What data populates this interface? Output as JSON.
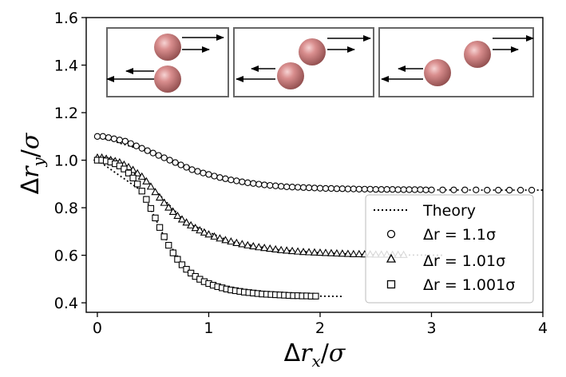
{
  "chart_data": {
    "type": "scatter",
    "xlabel": {
      "delta": "Δ",
      "var": "r",
      "sub": "x",
      "slash": "/",
      "sigma": "σ"
    },
    "ylabel": {
      "delta": "Δ",
      "var": "r",
      "sub": "y",
      "slash": "/",
      "sigma": "σ"
    },
    "xlim": [
      -0.1,
      4.0
    ],
    "ylim": [
      0.36,
      1.6
    ],
    "xticks": [
      "0",
      "1",
      "2",
      "3",
      "4"
    ],
    "yticks": [
      "0.4",
      "0.6",
      "0.8",
      "1.0",
      "1.2",
      "1.4",
      "1.6"
    ],
    "legend_position": "lower-right",
    "legend": [
      {
        "marker": "dotted-line",
        "label": "Theory"
      },
      {
        "marker": "circle",
        "label": "Δr = 1.1σ"
      },
      {
        "marker": "triangle",
        "label": "Δr = 1.01σ"
      },
      {
        "marker": "square",
        "label": "Δr = 1.001σ"
      }
    ],
    "series": [
      {
        "marker": "circle",
        "x": [
          0.0,
          0.05,
          0.1,
          0.15,
          0.2,
          0.25,
          0.3,
          0.35,
          0.4,
          0.45,
          0.5,
          0.55,
          0.6,
          0.65,
          0.7,
          0.75,
          0.8,
          0.85,
          0.9,
          0.95,
          1.0,
          1.05,
          1.1,
          1.15,
          1.2,
          1.25,
          1.3,
          1.35,
          1.4,
          1.45,
          1.5,
          1.55,
          1.6,
          1.65,
          1.7,
          1.75,
          1.8,
          1.85,
          1.9,
          1.95,
          2.0,
          2.05,
          2.1,
          2.15,
          2.2,
          2.25,
          2.3,
          2.35,
          2.4,
          2.45,
          2.5,
          2.55,
          2.6,
          2.65,
          2.7,
          2.75,
          2.8,
          2.85,
          2.9,
          2.95,
          3.0,
          3.1,
          3.2,
          3.3,
          3.4,
          3.5,
          3.6,
          3.7,
          3.8,
          3.9
        ],
        "y": [
          1.1,
          1.1,
          1.095,
          1.09,
          1.085,
          1.08,
          1.07,
          1.06,
          1.05,
          1.04,
          1.03,
          1.02,
          1.01,
          1.0,
          0.99,
          0.98,
          0.97,
          0.96,
          0.953,
          0.946,
          0.94,
          0.933,
          0.927,
          0.922,
          0.917,
          0.913,
          0.909,
          0.905,
          0.902,
          0.899,
          0.896,
          0.894,
          0.892,
          0.89,
          0.888,
          0.887,
          0.886,
          0.885,
          0.884,
          0.883,
          0.882,
          0.881,
          0.881,
          0.88,
          0.88,
          0.879,
          0.879,
          0.878,
          0.878,
          0.878,
          0.877,
          0.877,
          0.877,
          0.877,
          0.876,
          0.876,
          0.876,
          0.876,
          0.876,
          0.875,
          0.875,
          0.875,
          0.875,
          0.875,
          0.875,
          0.874,
          0.874,
          0.874,
          0.874,
          0.874
        ]
      },
      {
        "marker": "triangle",
        "x": [
          0.0,
          0.04,
          0.08,
          0.12,
          0.16,
          0.2,
          0.24,
          0.28,
          0.32,
          0.36,
          0.4,
          0.44,
          0.48,
          0.52,
          0.56,
          0.6,
          0.64,
          0.68,
          0.72,
          0.76,
          0.8,
          0.84,
          0.88,
          0.92,
          0.96,
          1.0,
          1.05,
          1.1,
          1.15,
          1.2,
          1.25,
          1.3,
          1.35,
          1.4,
          1.45,
          1.5,
          1.55,
          1.6,
          1.65,
          1.7,
          1.75,
          1.8,
          1.85,
          1.9,
          1.95,
          2.0,
          2.05,
          2.1,
          2.15,
          2.2,
          2.25,
          2.3,
          2.35,
          2.4,
          2.45,
          2.5,
          2.55,
          2.6,
          2.65,
          2.7,
          2.75
        ],
        "y": [
          1.01,
          1.01,
          1.005,
          1.0,
          0.995,
          0.99,
          0.98,
          0.97,
          0.958,
          0.944,
          0.93,
          0.91,
          0.888,
          0.865,
          0.842,
          0.82,
          0.8,
          0.782,
          0.765,
          0.75,
          0.737,
          0.725,
          0.714,
          0.704,
          0.695,
          0.687,
          0.678,
          0.67,
          0.663,
          0.657,
          0.651,
          0.646,
          0.641,
          0.637,
          0.633,
          0.63,
          0.627,
          0.624,
          0.621,
          0.619,
          0.617,
          0.615,
          0.613,
          0.612,
          0.611,
          0.61,
          0.609,
          0.608,
          0.607,
          0.606,
          0.605,
          0.604,
          0.604,
          0.603,
          0.603,
          0.602,
          0.602,
          0.602,
          0.601,
          0.601,
          0.601
        ]
      },
      {
        "marker": "square",
        "x": [
          0.0,
          0.04,
          0.08,
          0.12,
          0.16,
          0.2,
          0.24,
          0.28,
          0.32,
          0.36,
          0.4,
          0.44,
          0.48,
          0.52,
          0.56,
          0.6,
          0.64,
          0.68,
          0.72,
          0.76,
          0.8,
          0.84,
          0.88,
          0.92,
          0.96,
          1.0,
          1.04,
          1.08,
          1.12,
          1.16,
          1.2,
          1.24,
          1.28,
          1.32,
          1.36,
          1.4,
          1.44,
          1.48,
          1.52,
          1.56,
          1.6,
          1.64,
          1.68,
          1.72,
          1.76,
          1.8,
          1.84,
          1.88,
          1.92,
          1.96
        ],
        "y": [
          1.0,
          1.0,
          0.997,
          0.992,
          0.985,
          0.976,
          0.963,
          0.946,
          0.925,
          0.9,
          0.87,
          0.835,
          0.797,
          0.757,
          0.717,
          0.678,
          0.642,
          0.61,
          0.583,
          0.56,
          0.541,
          0.525,
          0.511,
          0.499,
          0.489,
          0.481,
          0.474,
          0.468,
          0.463,
          0.458,
          0.454,
          0.451,
          0.448,
          0.445,
          0.443,
          0.441,
          0.439,
          0.437,
          0.436,
          0.435,
          0.434,
          0.433,
          0.432,
          0.431,
          0.43,
          0.43,
          0.429,
          0.429,
          0.428,
          0.428
        ]
      }
    ],
    "theory": [
      {
        "x": [
          0.0,
          0.5,
          1.0,
          1.5,
          2.0,
          2.5,
          3.0,
          3.5,
          3.9,
          4.0
        ],
        "y": [
          1.1,
          1.03,
          0.94,
          0.896,
          0.882,
          0.877,
          0.875,
          0.874,
          0.874,
          0.874
        ]
      },
      {
        "x": [
          0.0,
          0.4,
          0.8,
          1.2,
          1.6,
          2.0,
          2.4,
          2.8,
          3.1
        ],
        "y": [
          1.01,
          0.93,
          0.737,
          0.657,
          0.624,
          0.61,
          0.603,
          0.601,
          0.6
        ]
      },
      {
        "x": [
          0.0,
          0.4,
          0.6,
          0.8,
          1.0,
          1.2,
          1.4,
          1.6,
          1.8,
          2.0,
          2.2
        ],
        "y": [
          1.0,
          0.87,
          0.678,
          0.541,
          0.481,
          0.454,
          0.441,
          0.434,
          0.43,
          0.428,
          0.427
        ]
      }
    ],
    "insets": [
      {
        "arrows": "ooo"
      },
      {
        "arrows": "ooo"
      },
      {
        "arrows": "ooo"
      }
    ]
  }
}
